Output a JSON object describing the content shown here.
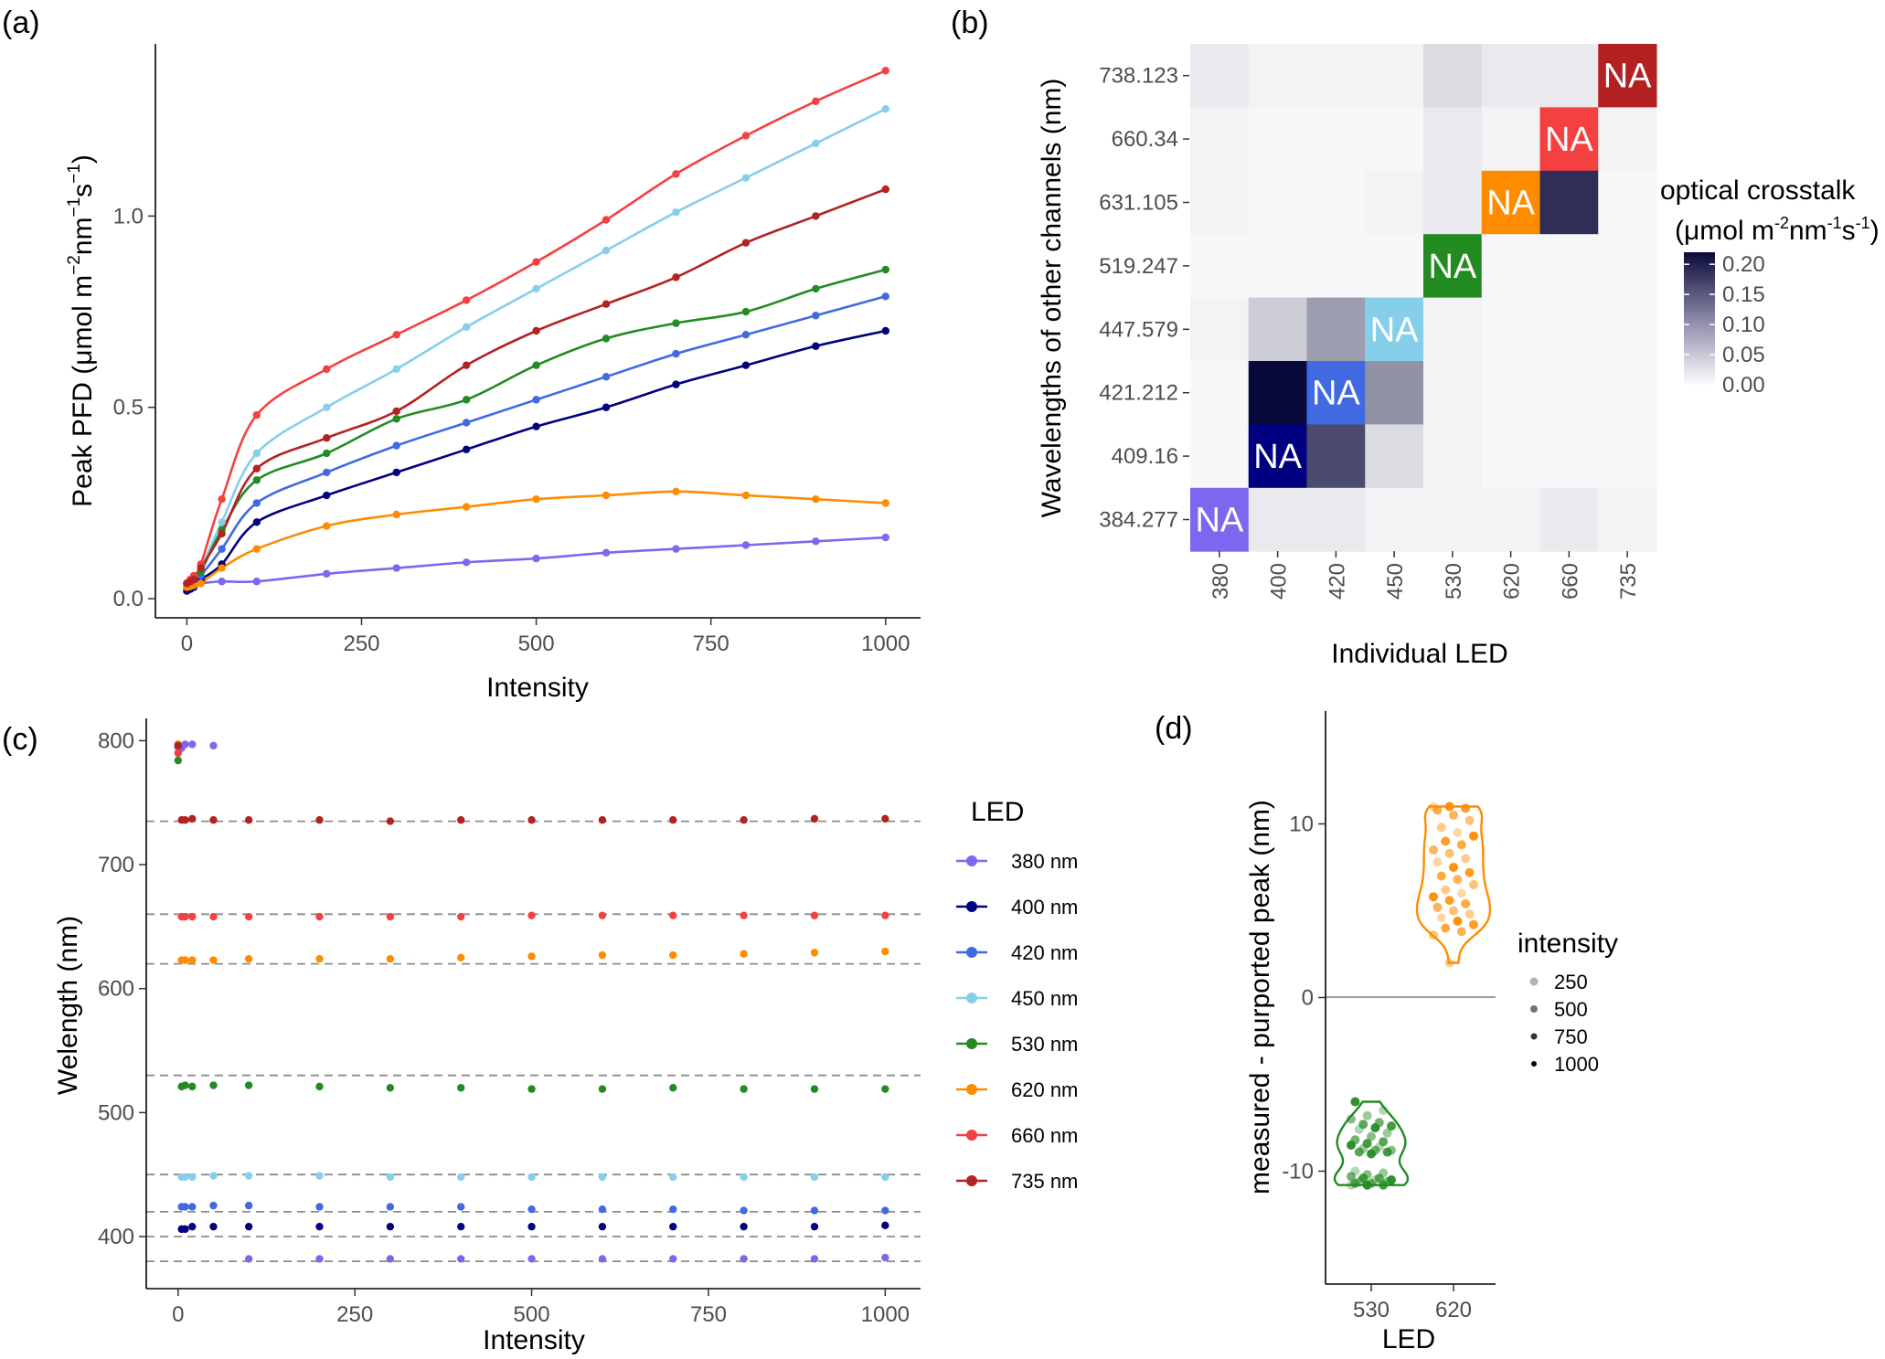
{
  "panels": {
    "a": {
      "label": "(a)",
      "xlabel": "Intensity",
      "ylabel_main": "Peak PFD (μmol m",
      "ylabel_sup1": "−2",
      "ylabel_mid": "nm",
      "ylabel_sup2": "−1",
      "ylabel_mid2": "s",
      "ylabel_sup3": "−1",
      "ylabel_end": ")"
    },
    "b": {
      "label": "(b)",
      "xlabel": "Individual LED",
      "ylabel": "Wavelengths of other channels (nm)",
      "legend_title_1": "optical crosstalk",
      "legend_title_2a": "(μmol m",
      "legend_title_2b": "-2",
      "legend_title_2c": "nm",
      "legend_title_2d": "-1",
      "legend_title_2e": "s",
      "legend_title_2f": "-1",
      "legend_title_2g": ")"
    },
    "c": {
      "label": "(c)",
      "xlabel": "Intensity",
      "ylabel": "Welength (nm)",
      "legend_title": "LED"
    },
    "d": {
      "label": "(d)",
      "xlabel": "LED",
      "ylabel": "measured - purported peak (nm)",
      "legend_title": "intensity"
    }
  },
  "colors": {
    "380 nm": "#7b68ee",
    "400 nm": "#000080",
    "420 nm": "#4169e1",
    "450 nm": "#87ceeb",
    "530 nm": "#228b22",
    "620 nm": "#ff8c00",
    "660 nm": "#f44040",
    "735 nm": "#b22222",
    "heat_high": "#0a0a3a"
  },
  "chart_data": [
    {
      "panel": "a",
      "type": "line",
      "xlabel": "Intensity",
      "ylabel": "Peak PFD (μmol m−2nm−1s−1)",
      "xlim": [
        -45,
        1050
      ],
      "ylim": [
        -0.05,
        1.45
      ],
      "xticks": [
        0,
        250,
        500,
        750,
        1000
      ],
      "yticks": [
        0.0,
        0.5,
        1.0
      ],
      "ytick_labels": [
        "0.0",
        "0.5",
        "1.0"
      ],
      "x": [
        0,
        5,
        10,
        20,
        50,
        100,
        200,
        300,
        400,
        500,
        600,
        700,
        800,
        900,
        1000
      ],
      "series": [
        {
          "led": "380 nm",
          "values": [
            0.03,
            0.033,
            0.035,
            0.04,
            0.045,
            0.045,
            0.065,
            0.08,
            0.095,
            0.105,
            0.12,
            0.13,
            0.14,
            0.15,
            0.16
          ]
        },
        {
          "led": "400 nm",
          "values": [
            0.02,
            0.025,
            0.03,
            0.05,
            0.09,
            0.2,
            0.27,
            0.33,
            0.39,
            0.45,
            0.5,
            0.56,
            0.61,
            0.66,
            0.7
          ]
        },
        {
          "led": "420 nm",
          "values": [
            0.03,
            0.035,
            0.04,
            0.06,
            0.13,
            0.25,
            0.33,
            0.4,
            0.46,
            0.52,
            0.58,
            0.64,
            0.69,
            0.74,
            0.79
          ]
        },
        {
          "led": "450 nm",
          "values": [
            0.04,
            0.045,
            0.05,
            0.08,
            0.2,
            0.38,
            0.5,
            0.6,
            0.71,
            0.81,
            0.91,
            1.01,
            1.1,
            1.19,
            1.28
          ]
        },
        {
          "led": "530 nm",
          "values": [
            0.04,
            0.045,
            0.05,
            0.07,
            0.18,
            0.31,
            0.38,
            0.47,
            0.52,
            0.61,
            0.68,
            0.72,
            0.75,
            0.81,
            0.86
          ]
        },
        {
          "led": "620 nm",
          "values": [
            0.03,
            0.032,
            0.035,
            0.04,
            0.08,
            0.13,
            0.19,
            0.22,
            0.24,
            0.26,
            0.27,
            0.28,
            0.27,
            0.26,
            0.25
          ]
        },
        {
          "led": "660 nm",
          "values": [
            0.04,
            0.05,
            0.06,
            0.09,
            0.26,
            0.48,
            0.6,
            0.69,
            0.78,
            0.88,
            0.99,
            1.11,
            1.21,
            1.3,
            1.38
          ]
        },
        {
          "led": "735 nm",
          "values": [
            0.04,
            0.045,
            0.05,
            0.08,
            0.17,
            0.34,
            0.42,
            0.49,
            0.61,
            0.7,
            0.77,
            0.84,
            0.93,
            1.0,
            1.07
          ]
        }
      ]
    },
    {
      "panel": "b",
      "type": "heatmap",
      "xlabel": "Individual LED",
      "ylabel": "Wavelengths of other channels (nm)",
      "x_categories": [
        "380",
        "400",
        "420",
        "450",
        "530",
        "620",
        "660",
        "735"
      ],
      "y_categories": [
        "738.123",
        "660.34",
        "631.105",
        "519.247",
        "447.579",
        "421.212",
        "409.16",
        "384.277"
      ],
      "color_range": [
        0.0,
        0.22
      ],
      "legend_ticks": [
        "0.20",
        "0.15",
        "0.10",
        "0.05",
        "0.00"
      ],
      "legend_tick_values": [
        0.2,
        0.15,
        0.1,
        0.05,
        0.0
      ],
      "na_label": "NA",
      "values": [
        [
          0.01,
          0.005,
          0.005,
          0.005,
          0.02,
          0.01,
          0.01,
          null
        ],
        [
          0.005,
          0.003,
          0.003,
          0.003,
          0.01,
          0.005,
          null,
          0.005
        ],
        [
          0.005,
          0.003,
          0.003,
          0.005,
          0.01,
          null,
          0.18,
          0.003
        ],
        [
          0.003,
          0.003,
          0.003,
          0.003,
          null,
          0.003,
          0.003,
          0.003
        ],
        [
          0.005,
          0.03,
          0.07,
          null,
          0.005,
          0.003,
          0.003,
          0.003
        ],
        [
          0.003,
          0.23,
          null,
          0.08,
          0.005,
          0.003,
          0.003,
          0.003
        ],
        [
          0.003,
          null,
          0.15,
          0.02,
          0.005,
          0.003,
          0.003,
          0.003
        ],
        [
          null,
          0.01,
          0.01,
          0.005,
          0.005,
          0.005,
          0.01,
          0.005
        ]
      ]
    },
    {
      "panel": "c",
      "type": "scatter",
      "xlabel": "Intensity",
      "ylabel": "Welength (nm)",
      "xlim": [
        -45,
        1050
      ],
      "ylim": [
        358,
        818
      ],
      "xticks": [
        0,
        250,
        500,
        750,
        1000
      ],
      "yticks": [
        400,
        500,
        600,
        700,
        800
      ],
      "reference_lines": [
        380,
        400,
        420,
        450,
        530,
        620,
        660,
        735
      ],
      "x": [
        0,
        5,
        10,
        20,
        50,
        100,
        200,
        300,
        400,
        500,
        600,
        700,
        800,
        900,
        1000
      ],
      "legend": [
        "380 nm",
        "400 nm",
        "420 nm",
        "450 nm",
        "530 nm",
        "620 nm",
        "660 nm",
        "735 nm"
      ],
      "series": [
        {
          "led": "380 nm",
          "values": [
            795,
            794,
            797,
            797,
            796,
            382,
            382,
            382,
            382,
            382,
            382,
            382,
            382,
            382,
            383
          ]
        },
        {
          "led": "400 nm",
          "values": [
            797,
            406,
            406,
            408,
            408,
            408,
            408,
            408,
            408,
            408,
            408,
            408,
            408,
            408,
            409
          ]
        },
        {
          "led": "420 nm",
          "values": [
            795,
            424,
            424,
            424,
            425,
            425,
            424,
            424,
            424,
            422,
            422,
            422,
            421,
            421,
            421
          ]
        },
        {
          "led": "450 nm",
          "values": [
            796,
            448,
            448,
            448,
            449,
            449,
            449,
            448,
            448,
            448,
            448,
            448,
            448,
            448,
            448
          ]
        },
        {
          "led": "530 nm",
          "values": [
            784,
            521,
            522,
            521,
            522,
            522,
            521,
            520,
            520,
            519,
            519,
            520,
            519,
            519,
            519
          ]
        },
        {
          "led": "620 nm",
          "values": [
            797,
            623,
            623,
            623,
            623,
            624,
            624,
            624,
            625,
            626,
            627,
            627,
            628,
            629,
            630
          ]
        },
        {
          "led": "660 nm",
          "values": [
            790,
            658,
            658,
            658,
            658,
            658,
            658,
            658,
            658,
            659,
            659,
            659,
            659,
            659,
            659
          ]
        },
        {
          "led": "735 nm",
          "values": [
            796,
            736,
            736,
            737,
            736,
            736,
            736,
            735,
            736,
            736,
            736,
            736,
            736,
            737,
            737
          ]
        }
      ]
    },
    {
      "panel": "d",
      "type": "scatter",
      "subtype": "violin",
      "xlabel": "LED",
      "ylabel": "measured - purported peak (nm)",
      "categories": [
        "530",
        "620"
      ],
      "ylim": [
        -16.5,
        16.5
      ],
      "yticks": [
        -10,
        0,
        10
      ],
      "hline": 0,
      "legend_title": "intensity",
      "legend": [
        "250",
        "500",
        "750",
        "1000"
      ],
      "series": [
        {
          "led": "530 nm",
          "values": [
            -10.8,
            -10.8,
            -10.8,
            -10.7,
            -10.7,
            -10.6,
            -10.6,
            -10.5,
            -10.5,
            -10.4,
            -10.4,
            -10.3,
            -10.2,
            -10.1,
            -10.0,
            -9.0,
            -8.9,
            -8.9,
            -8.8,
            -8.8,
            -8.7,
            -8.6,
            -8.5,
            -8.4,
            -8.3,
            -8.2,
            -8.0,
            -7.8,
            -7.6,
            -7.5,
            -7.4,
            -7.3,
            -7.2,
            -7.0,
            -6.8,
            -6.5,
            -6.0
          ]
        },
        {
          "led": "620 nm",
          "values": [
            11.0,
            11.0,
            10.9,
            10.8,
            10.5,
            10.2,
            9.8,
            9.5,
            9.3,
            9.0,
            8.8,
            8.5,
            8.3,
            8.0,
            7.8,
            7.5,
            7.2,
            7.0,
            6.8,
            6.5,
            6.2,
            6.0,
            5.8,
            5.6,
            5.4,
            5.2,
            5.0,
            4.8,
            4.6,
            4.4,
            4.2,
            4.0,
            3.8,
            3.6,
            2.0
          ]
        }
      ]
    }
  ]
}
